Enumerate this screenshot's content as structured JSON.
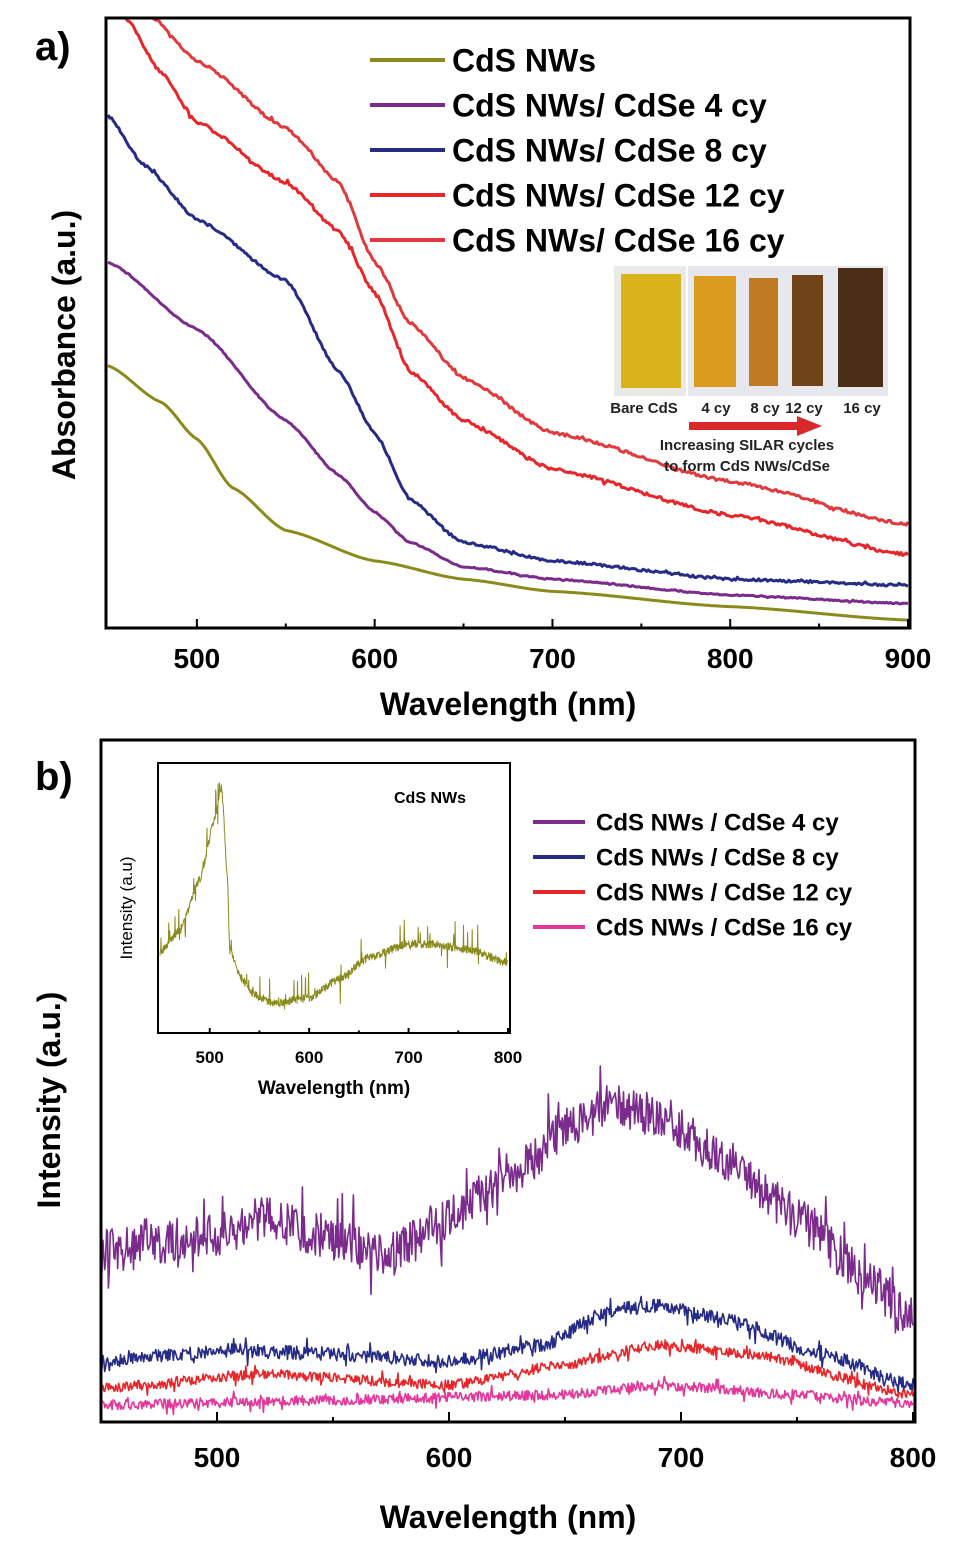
{
  "chart_data": [
    {
      "panel_label": "a)",
      "type": "line",
      "xlabel": "Wavelength (nm)",
      "ylabel": "Absorbance (a.u.)",
      "xlim": [
        450,
        900
      ],
      "ylim": [
        0,
        1
      ],
      "xticks": [
        "500",
        "600",
        "700",
        "800",
        "900"
      ],
      "yticks": [],
      "grid": false,
      "legend_position": "top-right",
      "series": [
        {
          "name": "CdS NWs",
          "color": "#8b8a1c",
          "x": [
            450,
            480,
            500,
            520,
            550,
            600,
            650,
            700,
            800,
            900
          ],
          "y": [
            0.43,
            0.37,
            0.31,
            0.23,
            0.16,
            0.11,
            0.08,
            0.06,
            0.035,
            0.013
          ]
        },
        {
          "name": "CdS NWs/ CdSe 4 cy",
          "color": "#7a2b8c",
          "x": [
            450,
            500,
            550,
            580,
            600,
            620,
            650,
            700,
            800,
            900
          ],
          "y": [
            0.6,
            0.49,
            0.34,
            0.25,
            0.19,
            0.14,
            0.1,
            0.08,
            0.054,
            0.04
          ]
        },
        {
          "name": "CdS NWs/ CdSe 8 cy",
          "color": "#262b88",
          "x": [
            450,
            470,
            500,
            550,
            580,
            600,
            620,
            650,
            700,
            800,
            900
          ],
          "y": [
            0.84,
            0.76,
            0.67,
            0.57,
            0.42,
            0.32,
            0.21,
            0.14,
            0.11,
            0.08,
            0.07
          ]
        },
        {
          "name": "CdS NWs/ CdSe 12 cy",
          "color": "#e8262a",
          "x": [
            460,
            480,
            500,
            550,
            580,
            600,
            620,
            650,
            700,
            800,
            900
          ],
          "y": [
            1.0,
            0.91,
            0.83,
            0.73,
            0.65,
            0.55,
            0.42,
            0.34,
            0.26,
            0.185,
            0.12
          ]
        },
        {
          "name": "CdS NWs/ CdSe 16 cy",
          "color": "#e03a3e",
          "x": [
            475,
            500,
            550,
            580,
            600,
            620,
            650,
            700,
            800,
            900
          ],
          "y": [
            1.0,
            0.93,
            0.82,
            0.73,
            0.6,
            0.5,
            0.41,
            0.32,
            0.24,
            0.17
          ]
        }
      ],
      "inset_photo": {
        "sample_labels": [
          "Bare CdS",
          "4 cy",
          "8 cy",
          "12 cy",
          "16 cy"
        ],
        "sample_colors": [
          "#d9b21c",
          "#d99a1e",
          "#c07a22",
          "#6e4418",
          "#4a2e18"
        ],
        "arrow_color": "#d9282a",
        "caption": [
          "Increasing SILAR cycles",
          "to form CdS NWs/CdSe"
        ]
      }
    },
    {
      "panel_label": "b)",
      "type": "line",
      "xlabel": "Wavelength (nm)",
      "ylabel": "Intensity (a.u.)",
      "xlim": [
        450,
        800
      ],
      "ylim": [
        0,
        1
      ],
      "xticks": [
        "500",
        "600",
        "700",
        "800"
      ],
      "yticks": [],
      "grid": false,
      "legend_position": "top-right",
      "series": [
        {
          "name": "CdS NWs / CdSe 4 cy",
          "color": "#7a2b8c",
          "x": [
            450,
            500,
            520,
            550,
            575,
            600,
            630,
            650,
            670,
            690,
            720,
            750,
            780,
            800
          ],
          "y": [
            0.25,
            0.275,
            0.3,
            0.27,
            0.245,
            0.3,
            0.37,
            0.43,
            0.465,
            0.45,
            0.385,
            0.3,
            0.21,
            0.15
          ]
        },
        {
          "name": "CdS NWs / CdSe 8 cy",
          "color": "#262b88",
          "x": [
            450,
            500,
            550,
            600,
            640,
            670,
            690,
            720,
            760,
            800
          ],
          "y": [
            0.088,
            0.105,
            0.1,
            0.088,
            0.113,
            0.164,
            0.17,
            0.15,
            0.1,
            0.054
          ]
        },
        {
          "name": "CdS NWs / CdSe 12 cy",
          "color": "#e8262a",
          "x": [
            450,
            520,
            600,
            650,
            690,
            730,
            800
          ],
          "y": [
            0.05,
            0.07,
            0.054,
            0.084,
            0.113,
            0.1,
            0.04
          ]
        },
        {
          "name": "CdS NWs / CdSe 16 cy",
          "color": "#e5369a",
          "x": [
            450,
            550,
            650,
            690,
            750,
            800
          ],
          "y": [
            0.025,
            0.032,
            0.04,
            0.054,
            0.04,
            0.025
          ]
        }
      ]
    },
    {
      "panel_label": "b) inset",
      "type": "line",
      "title": "CdS NWs",
      "xlabel": "Wavelength (nm)",
      "ylabel": "Intensity (a.u)",
      "xlim": [
        450,
        800
      ],
      "ylim": [
        0,
        1
      ],
      "xticks": [
        "500",
        "600",
        "700",
        "800"
      ],
      "grid": false,
      "series": [
        {
          "color": "#8b8a1c",
          "x": [
            450,
            470,
            490,
            505,
            512,
            518,
            520,
            530,
            545,
            565,
            600,
            630,
            660,
            700,
            720,
            760,
            800
          ],
          "y": [
            0.3,
            0.38,
            0.57,
            0.79,
            0.91,
            0.57,
            0.31,
            0.21,
            0.14,
            0.11,
            0.13,
            0.2,
            0.28,
            0.33,
            0.33,
            0.31,
            0.26
          ]
        }
      ]
    }
  ]
}
